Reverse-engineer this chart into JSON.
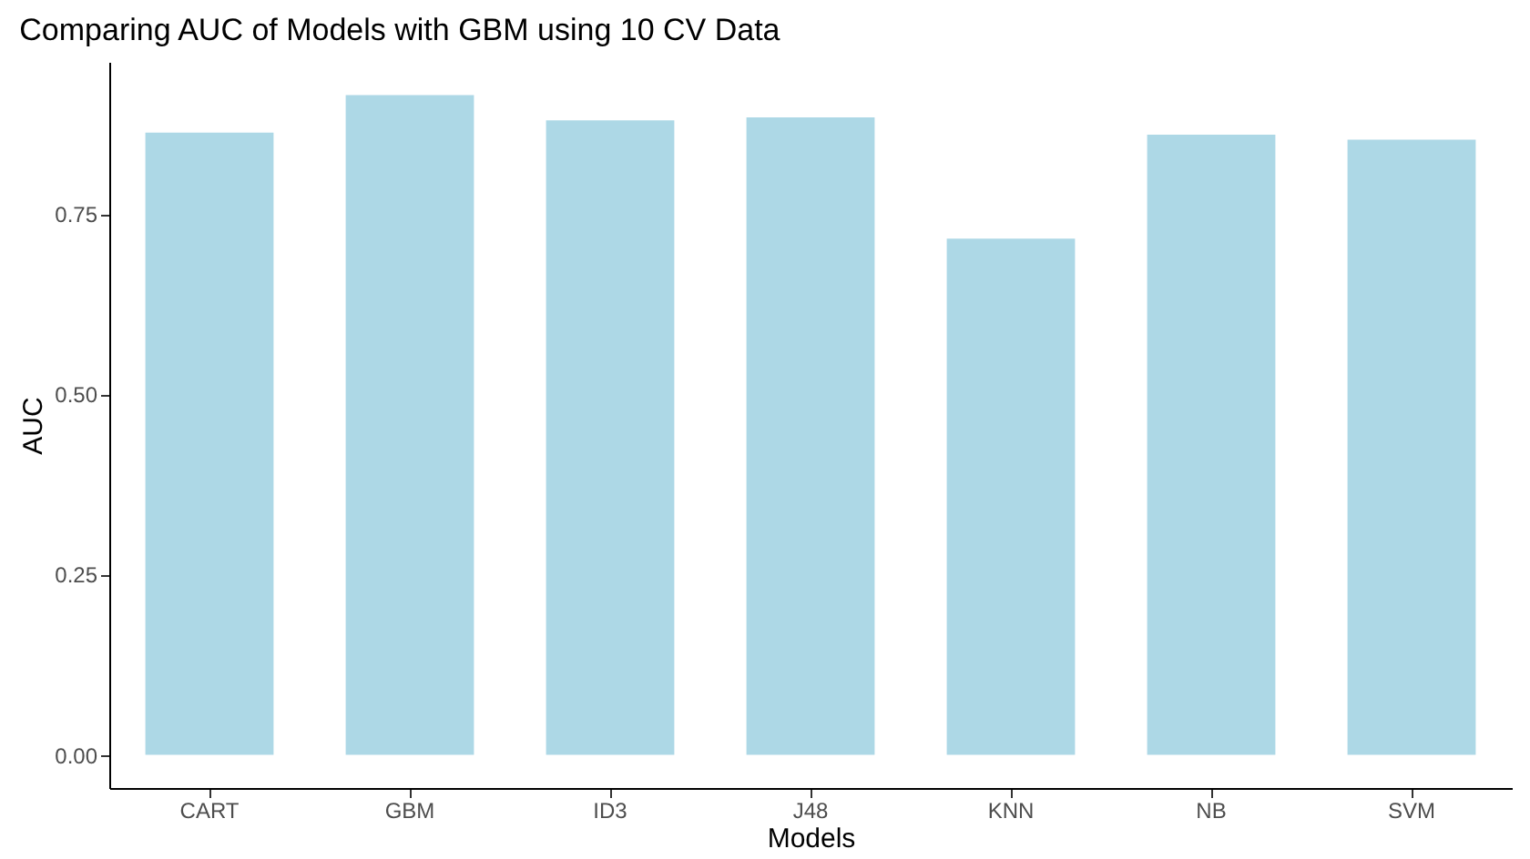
{
  "chart_data": {
    "type": "bar",
    "title": "Comparing AUC of Models with GBM using 10 CV Data",
    "xlabel": "Models",
    "ylabel": "AUC",
    "categories": [
      "CART",
      "GBM",
      "ID3",
      "J48",
      "KNN",
      "NB",
      "SVM"
    ],
    "values": [
      0.863,
      0.915,
      0.88,
      0.884,
      0.716,
      0.86,
      0.853
    ],
    "color": "#add8e6",
    "ylim": [
      -0.046,
      0.961
    ],
    "yticks": [
      {
        "value": 0,
        "label": "0.00"
      },
      0.25,
      {
        "value": 0.5,
        "label": "0.50"
      },
      0.75
    ],
    "grid": false
  }
}
